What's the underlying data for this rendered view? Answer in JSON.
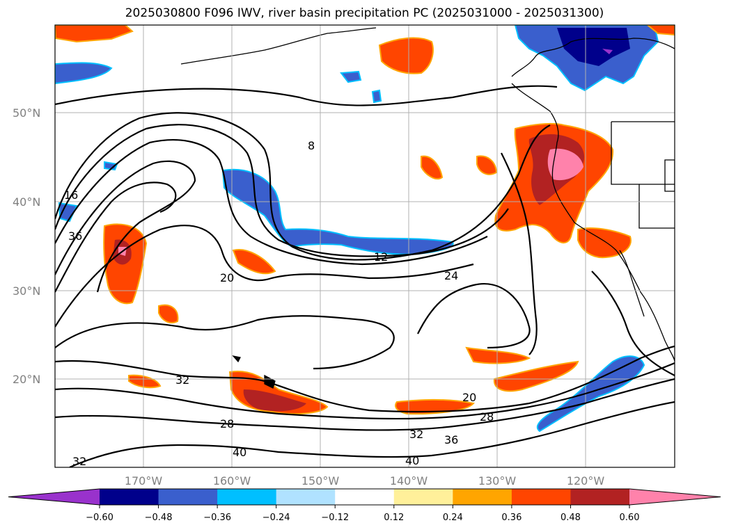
{
  "title": "2025030800 F096 IWV, river basin precipitation PC (2025031000 - 2025031300)",
  "lat_labels": [
    "50°N",
    "40°N",
    "30°N",
    "20°N"
  ],
  "lon_labels": [
    "170°W",
    "160°W",
    "150°W",
    "140°W",
    "130°W",
    "120°W"
  ],
  "colorbar": {
    "ticks": [
      "−0.60",
      "−0.48",
      "−0.36",
      "−0.24",
      "−0.12",
      "0.12",
      "0.24",
      "0.36",
      "0.48",
      "0.60"
    ],
    "colors": [
      "#9932cc",
      "#00008b",
      "#3a5fcd",
      "#00bfff",
      "#b0e2ff",
      "#ffffff",
      "#fff09a",
      "#ffa500",
      "#ff4500",
      "#b22222",
      "#ff82ab"
    ]
  },
  "contour_labels": [
    "8",
    "16",
    "36",
    "20",
    "12",
    "24",
    "32",
    "28",
    "40",
    "20",
    "28",
    "32",
    "36",
    "40",
    "32"
  ]
}
